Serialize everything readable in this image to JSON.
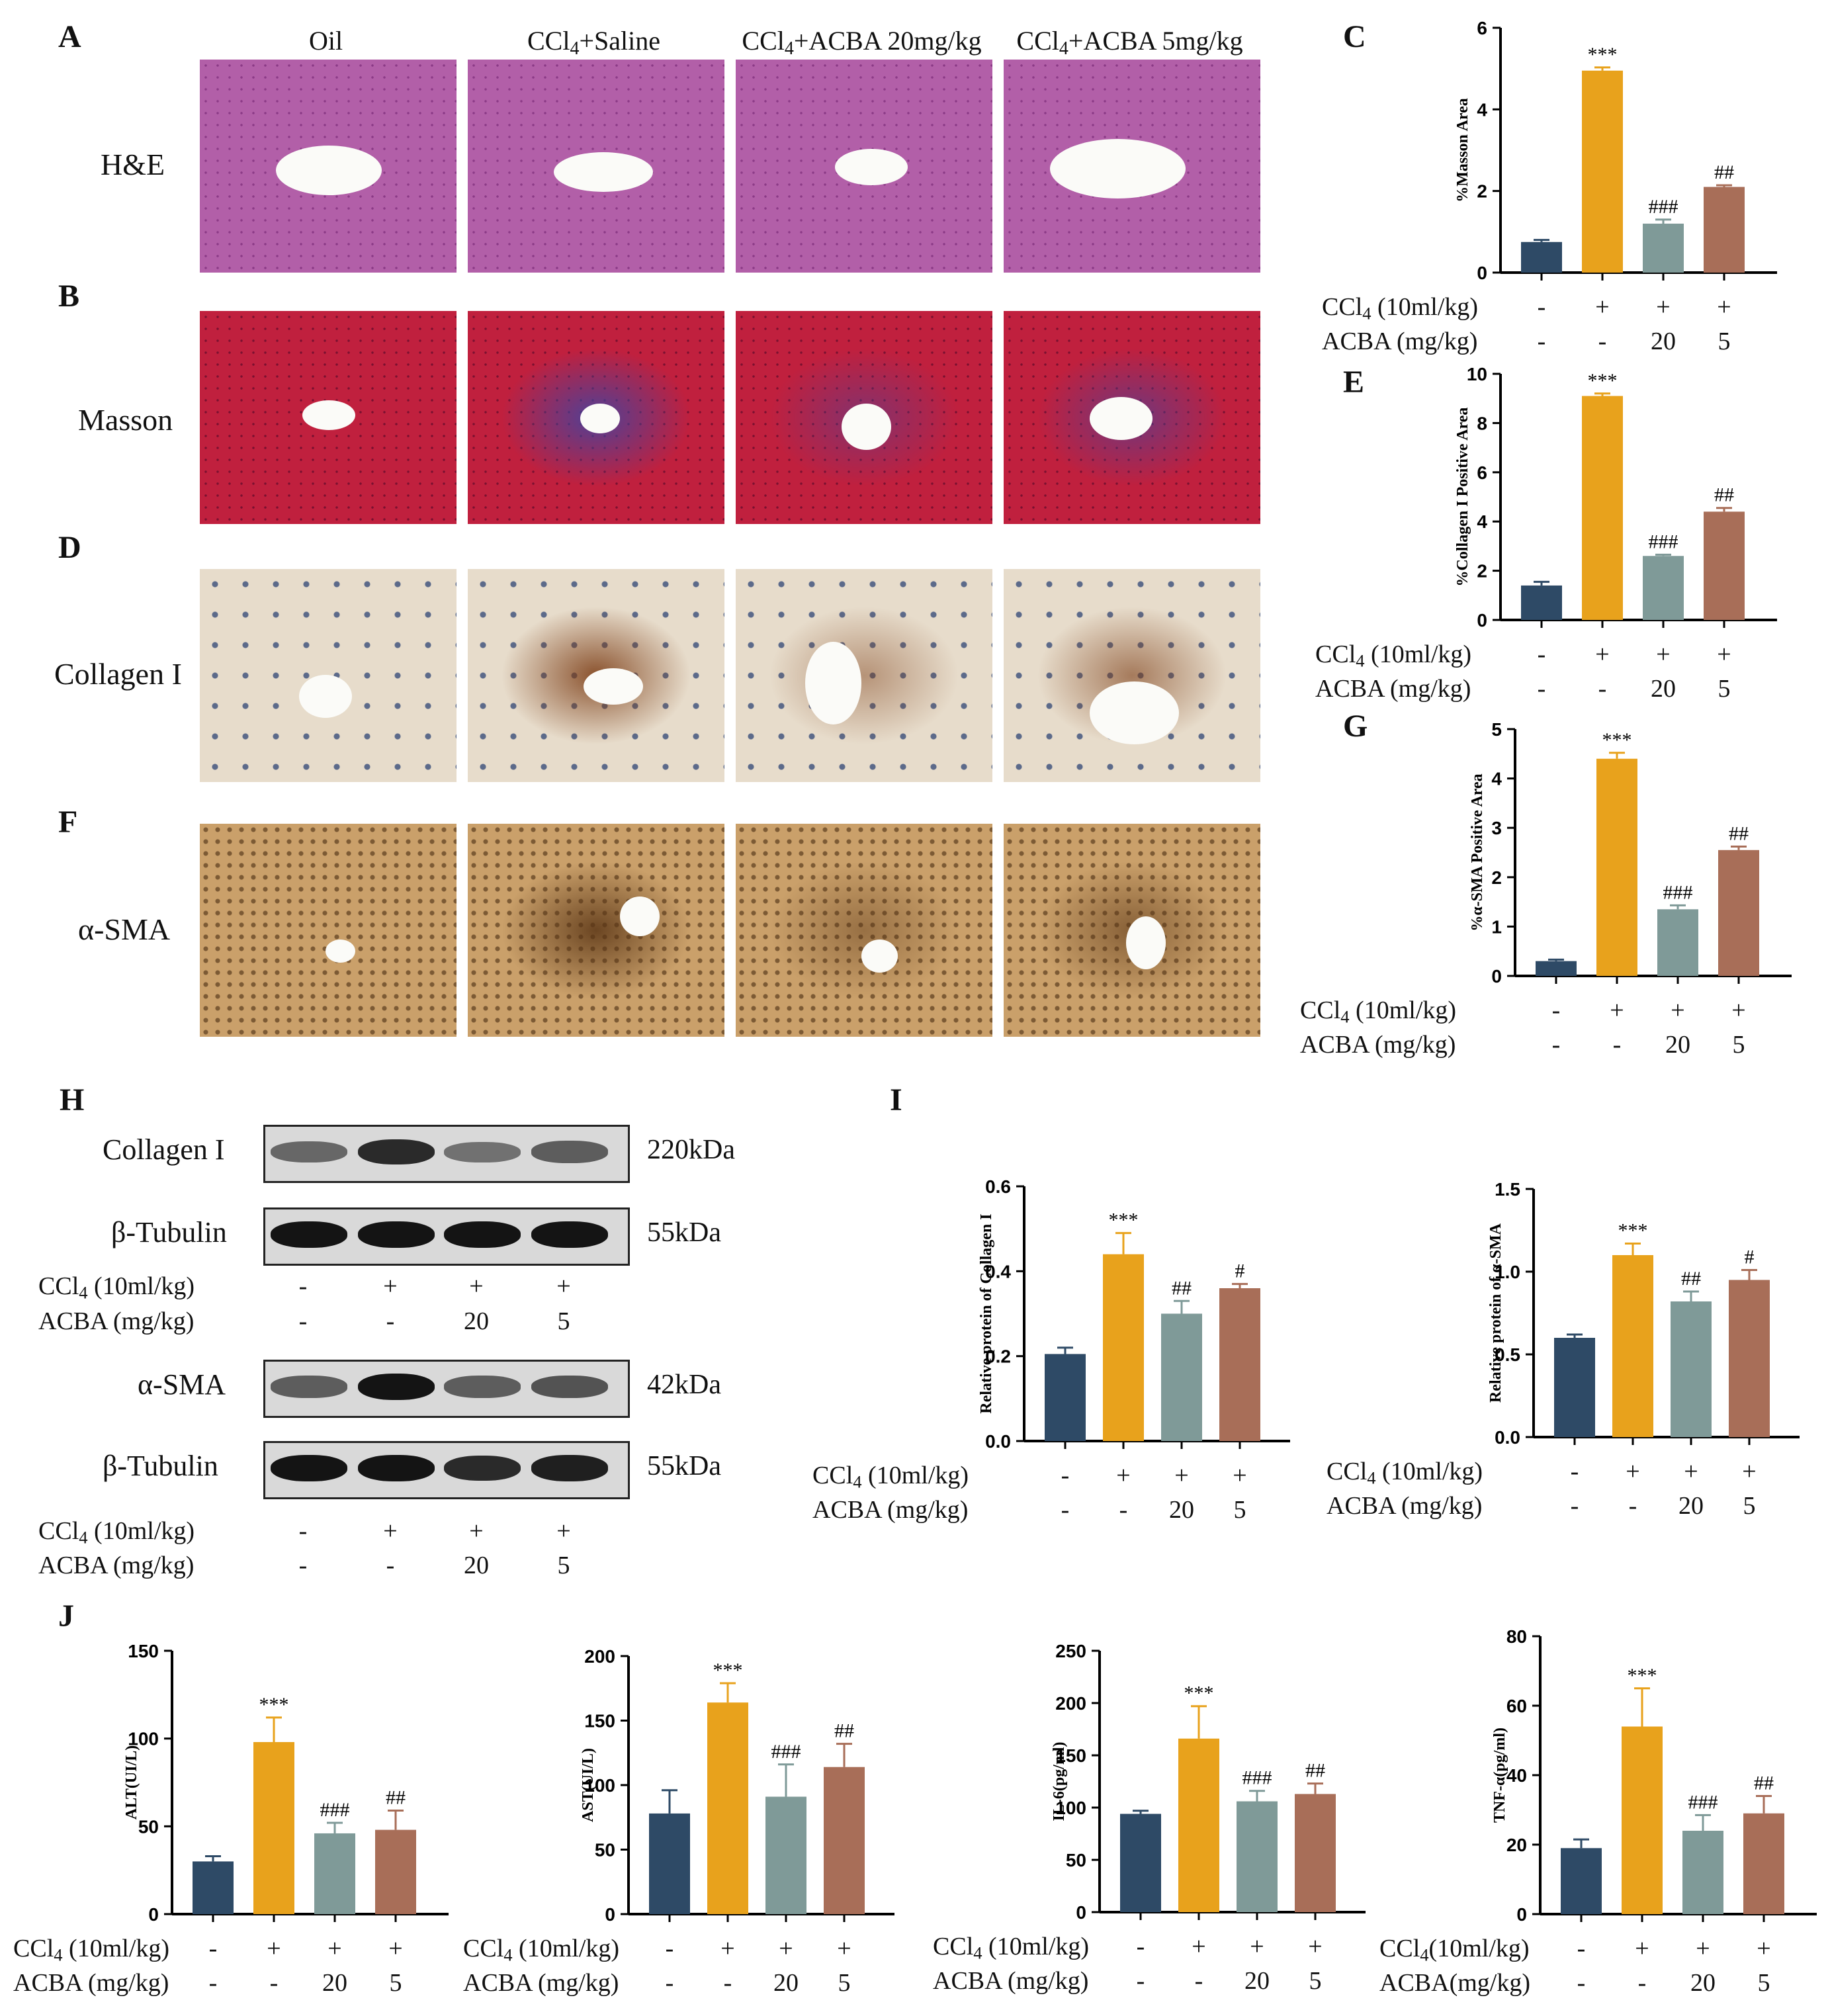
{
  "panels": {
    "A": "A",
    "B": "B",
    "C": "C",
    "D": "D",
    "E": "E",
    "F": "F",
    "G": "G",
    "H": "H",
    "I": "I",
    "J": "J"
  },
  "micro": {
    "columns": [
      "Oil",
      "CCl4+Saline",
      "CCl4+ACBA 20mg/kg",
      "CCl4+ACBA 5mg/kg"
    ],
    "rows": [
      "H&E",
      "Masson",
      "Collagen I",
      "α-SMA"
    ],
    "row_colors": {
      "he": "#b25fa8",
      "masson": "#c0203e",
      "collagen": "#e7dccb",
      "asma": "#caa06a"
    },
    "fibrosis_color": {
      "masson": "#3a46a6",
      "collagen": "#7a3a12",
      "asma": "#5a3515"
    }
  },
  "blot": {
    "rows": [
      {
        "protein": "Collagen I",
        "kda": "220kDa"
      },
      {
        "protein": "β-Tubulin",
        "kda": "55kDa"
      },
      {
        "protein": "α-SMA",
        "kda": "42kDa"
      },
      {
        "protein": "β-Tubulin",
        "kda": "55kDa"
      }
    ],
    "band_intensity": [
      [
        0.55,
        0.85,
        0.5,
        0.6
      ],
      [
        0.95,
        0.95,
        0.95,
        0.95
      ],
      [
        0.6,
        0.95,
        0.6,
        0.65
      ],
      [
        0.95,
        0.95,
        0.85,
        0.9
      ]
    ]
  },
  "treatment": {
    "ccl4_label": "CCl4 (10ml/kg)",
    "ccl4_label_compact": "CCl4(10ml/kg)",
    "acba_label": "ACBA (mg/kg)",
    "acba_label_compact": "ACBA(mg/kg)",
    "ccl4_values": [
      "-",
      "+",
      "+",
      "+"
    ],
    "acba_values": [
      "-",
      "-",
      "20",
      "5"
    ]
  },
  "colors": {
    "series": [
      "#2e4a66",
      "#e8a21c",
      "#7f9a98",
      "#a86e58"
    ]
  },
  "chart_data": [
    {
      "id": "C",
      "type": "bar",
      "ylabel": "%Masson Area",
      "ylim": [
        0,
        6
      ],
      "ticks": [
        0,
        2,
        4,
        6
      ],
      "values": [
        0.75,
        4.95,
        1.2,
        2.1
      ],
      "errors": [
        0.05,
        0.08,
        0.1,
        0.04
      ],
      "annotations": [
        "",
        "***",
        "###",
        "##"
      ]
    },
    {
      "id": "E",
      "type": "bar",
      "ylabel": "%Collagen I Positive Area",
      "ylim": [
        0,
        10
      ],
      "ticks": [
        0,
        2,
        4,
        6,
        8,
        10
      ],
      "values": [
        1.4,
        9.1,
        2.6,
        4.4
      ],
      "errors": [
        0.15,
        0.1,
        0.05,
        0.15
      ],
      "annotations": [
        "",
        "***",
        "###",
        "##"
      ]
    },
    {
      "id": "G",
      "type": "bar",
      "ylabel": "%α-SMA Positive Area",
      "ylim": [
        0,
        5
      ],
      "ticks": [
        0,
        1,
        2,
        3,
        4,
        5
      ],
      "values": [
        0.3,
        4.4,
        1.35,
        2.55
      ],
      "errors": [
        0.03,
        0.12,
        0.08,
        0.07
      ],
      "annotations": [
        "",
        "***",
        "###",
        "##"
      ]
    },
    {
      "id": "I1",
      "type": "bar",
      "ylabel": "Relative protein of Collagen I",
      "ylim": [
        0,
        0.6
      ],
      "ticks": [
        0.0,
        0.2,
        0.4,
        0.6
      ],
      "values": [
        0.205,
        0.44,
        0.3,
        0.36
      ],
      "errors": [
        0.015,
        0.05,
        0.03,
        0.01
      ],
      "annotations": [
        "",
        "***",
        "##",
        "#"
      ]
    },
    {
      "id": "I2",
      "type": "bar",
      "ylabel": "Relative protein of α-SMA",
      "ylim": [
        0,
        1.5
      ],
      "ticks": [
        0.0,
        0.5,
        1.0,
        1.5
      ],
      "values": [
        0.6,
        1.1,
        0.82,
        0.95
      ],
      "errors": [
        0.02,
        0.07,
        0.06,
        0.06
      ],
      "annotations": [
        "",
        "***",
        "##",
        "#"
      ]
    },
    {
      "id": "J1",
      "type": "bar",
      "ylabel": "ALT(UI/L)",
      "ylim": [
        0,
        150
      ],
      "ticks": [
        0,
        50,
        100,
        150
      ],
      "values": [
        30,
        98,
        46,
        48
      ],
      "errors": [
        3,
        14,
        6,
        11
      ],
      "annotations": [
        "",
        "***",
        "###",
        "##"
      ]
    },
    {
      "id": "J2",
      "type": "bar",
      "ylabel": "AST(UI/L)",
      "ylim": [
        0,
        200
      ],
      "ticks": [
        0,
        50,
        100,
        150,
        200
      ],
      "values": [
        78,
        164,
        91,
        114
      ],
      "errors": [
        18,
        15,
        25,
        18
      ],
      "annotations": [
        "",
        "***",
        "###",
        "##"
      ]
    },
    {
      "id": "J3",
      "type": "bar",
      "ylabel": "IL-6(pg/ml)",
      "ylim": [
        0,
        250
      ],
      "ticks": [
        0,
        50,
        100,
        150,
        200,
        250
      ],
      "values": [
        94,
        166,
        106,
        113
      ],
      "errors": [
        3,
        31,
        10,
        10
      ],
      "annotations": [
        "",
        "***",
        "###",
        "##"
      ]
    },
    {
      "id": "J4",
      "type": "bar",
      "ylabel": "TNF-α(pg/ml)",
      "ylim": [
        0,
        80
      ],
      "ticks": [
        0,
        20,
        40,
        60,
        80
      ],
      "values": [
        19,
        54,
        24,
        29
      ],
      "errors": [
        2.5,
        11,
        4.5,
        5
      ],
      "annotations": [
        "",
        "***",
        "###",
        "##"
      ]
    }
  ]
}
